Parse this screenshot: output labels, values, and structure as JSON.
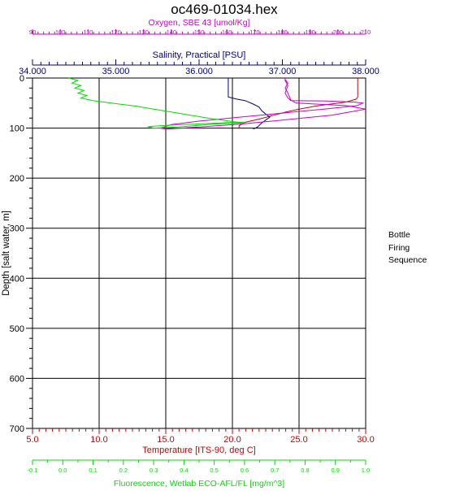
{
  "chart_data": {
    "type": "line",
    "title": "oc469-01034.hex",
    "plot": {
      "grid": true,
      "y_axis": {
        "label": "Depth [salt water, m]",
        "range": [
          0,
          700
        ],
        "inverted": true,
        "ticks": [
          "0",
          "100",
          "200",
          "300",
          "400",
          "500",
          "600",
          "700"
        ],
        "color": "#000000"
      },
      "axes": [
        {
          "id": "oxygen",
          "position": "top",
          "label": "Oxygen, SBE 43 [umol/Kg]",
          "color": "#cc00cc",
          "range": [
            90,
            210
          ],
          "ticks": [
            "90",
            "100",
            "110",
            "120",
            "130",
            "140",
            "150",
            "160",
            "170",
            "180",
            "190",
            "200",
            "210"
          ]
        },
        {
          "id": "salinity",
          "position": "top",
          "label": "Salinity, Practical [PSU]",
          "color": "#000080",
          "range": [
            34.0,
            38.0
          ],
          "ticks": [
            "34.000",
            "35.000",
            "36.000",
            "37.000",
            "38.000"
          ]
        },
        {
          "id": "temperature",
          "position": "bottom",
          "label": "Temperature [ITS-90, deg C]",
          "color": "#cc0000",
          "range": [
            5.0,
            30.0
          ],
          "ticks": [
            "5.0",
            "10.0",
            "15.0",
            "20.0",
            "25.0",
            "30.0"
          ]
        },
        {
          "id": "fluorescence",
          "position": "bottom",
          "label": "Fluorescence, Wetlab ECO-AFL/FL [mg/m^3]",
          "color": "#00dd00",
          "range": [
            -0.1,
            1.0
          ],
          "ticks": [
            "-0.1",
            "0.0",
            "0.1",
            "0.2",
            "0.3",
            "0.4",
            "0.5",
            "0.6",
            "0.7",
            "0.8",
            "0.9",
            "1.0"
          ]
        }
      ]
    },
    "series": [
      {
        "axis": "temperature",
        "color": "#cc0000",
        "points": [
          [
            29.4,
            0
          ],
          [
            29.4,
            20
          ],
          [
            29.4,
            38
          ],
          [
            29.3,
            42
          ],
          [
            28.5,
            48
          ],
          [
            26.5,
            55
          ],
          [
            25.0,
            62
          ],
          [
            24.0,
            68
          ],
          [
            23.0,
            75
          ],
          [
            22.0,
            82
          ],
          [
            21.0,
            88
          ],
          [
            20.5,
            95
          ],
          [
            20.5,
            100
          ]
        ]
      },
      {
        "axis": "salinity",
        "color": "#000080",
        "points": [
          [
            36.35,
            0
          ],
          [
            36.35,
            20
          ],
          [
            36.35,
            38
          ],
          [
            36.45,
            42
          ],
          [
            36.55,
            45
          ],
          [
            36.65,
            52
          ],
          [
            36.72,
            58
          ],
          [
            36.75,
            65
          ],
          [
            36.8,
            72
          ],
          [
            36.85,
            78
          ],
          [
            36.8,
            84
          ],
          [
            36.75,
            90
          ],
          [
            36.7,
            98
          ],
          [
            36.65,
            102
          ]
        ]
      },
      {
        "axis": "oxygen",
        "color": "#cc00cc",
        "points": [
          [
            181,
            0
          ],
          [
            181,
            5
          ],
          [
            182,
            15
          ],
          [
            181,
            30
          ],
          [
            182,
            40
          ],
          [
            183,
            45
          ],
          [
            196,
            46
          ],
          [
            206,
            48
          ],
          [
            209,
            50
          ],
          [
            207,
            55
          ],
          [
            195,
            62
          ],
          [
            180,
            70
          ],
          [
            165,
            78
          ],
          [
            150,
            86
          ],
          [
            140,
            93
          ],
          [
            136,
            100
          ],
          [
            138,
            102
          ],
          [
            150,
            98
          ],
          [
            165,
            92
          ],
          [
            180,
            84
          ],
          [
            198,
            74
          ],
          [
            210,
            62
          ],
          [
            203,
            55
          ],
          [
            185,
            50
          ],
          [
            183,
            44
          ],
          [
            182,
            30
          ],
          [
            181,
            20
          ],
          [
            182,
            10
          ],
          [
            181,
            3
          ]
        ]
      },
      {
        "axis": "fluorescence",
        "color": "#00dd00",
        "points": [
          [
            0.02,
            0
          ],
          [
            0.05,
            5
          ],
          [
            0.03,
            10
          ],
          [
            0.06,
            15
          ],
          [
            0.04,
            20
          ],
          [
            0.07,
            25
          ],
          [
            0.05,
            30
          ],
          [
            0.08,
            35
          ],
          [
            0.06,
            40
          ],
          [
            0.1,
            45
          ],
          [
            0.16,
            50
          ],
          [
            0.24,
            56
          ],
          [
            0.3,
            62
          ],
          [
            0.36,
            68
          ],
          [
            0.42,
            74
          ],
          [
            0.48,
            80
          ],
          [
            0.55,
            86
          ],
          [
            0.6,
            90
          ],
          [
            0.5,
            92
          ],
          [
            0.44,
            95
          ],
          [
            0.38,
            98
          ],
          [
            0.3,
            100
          ],
          [
            0.28,
            97
          ],
          [
            0.36,
            94
          ],
          [
            0.44,
            92
          ],
          [
            0.55,
            89
          ],
          [
            0.6,
            88
          ]
        ]
      }
    ]
  },
  "legend_panel": {
    "line1": "Bottle",
    "line2": "Firing",
    "line3": "Sequence"
  }
}
